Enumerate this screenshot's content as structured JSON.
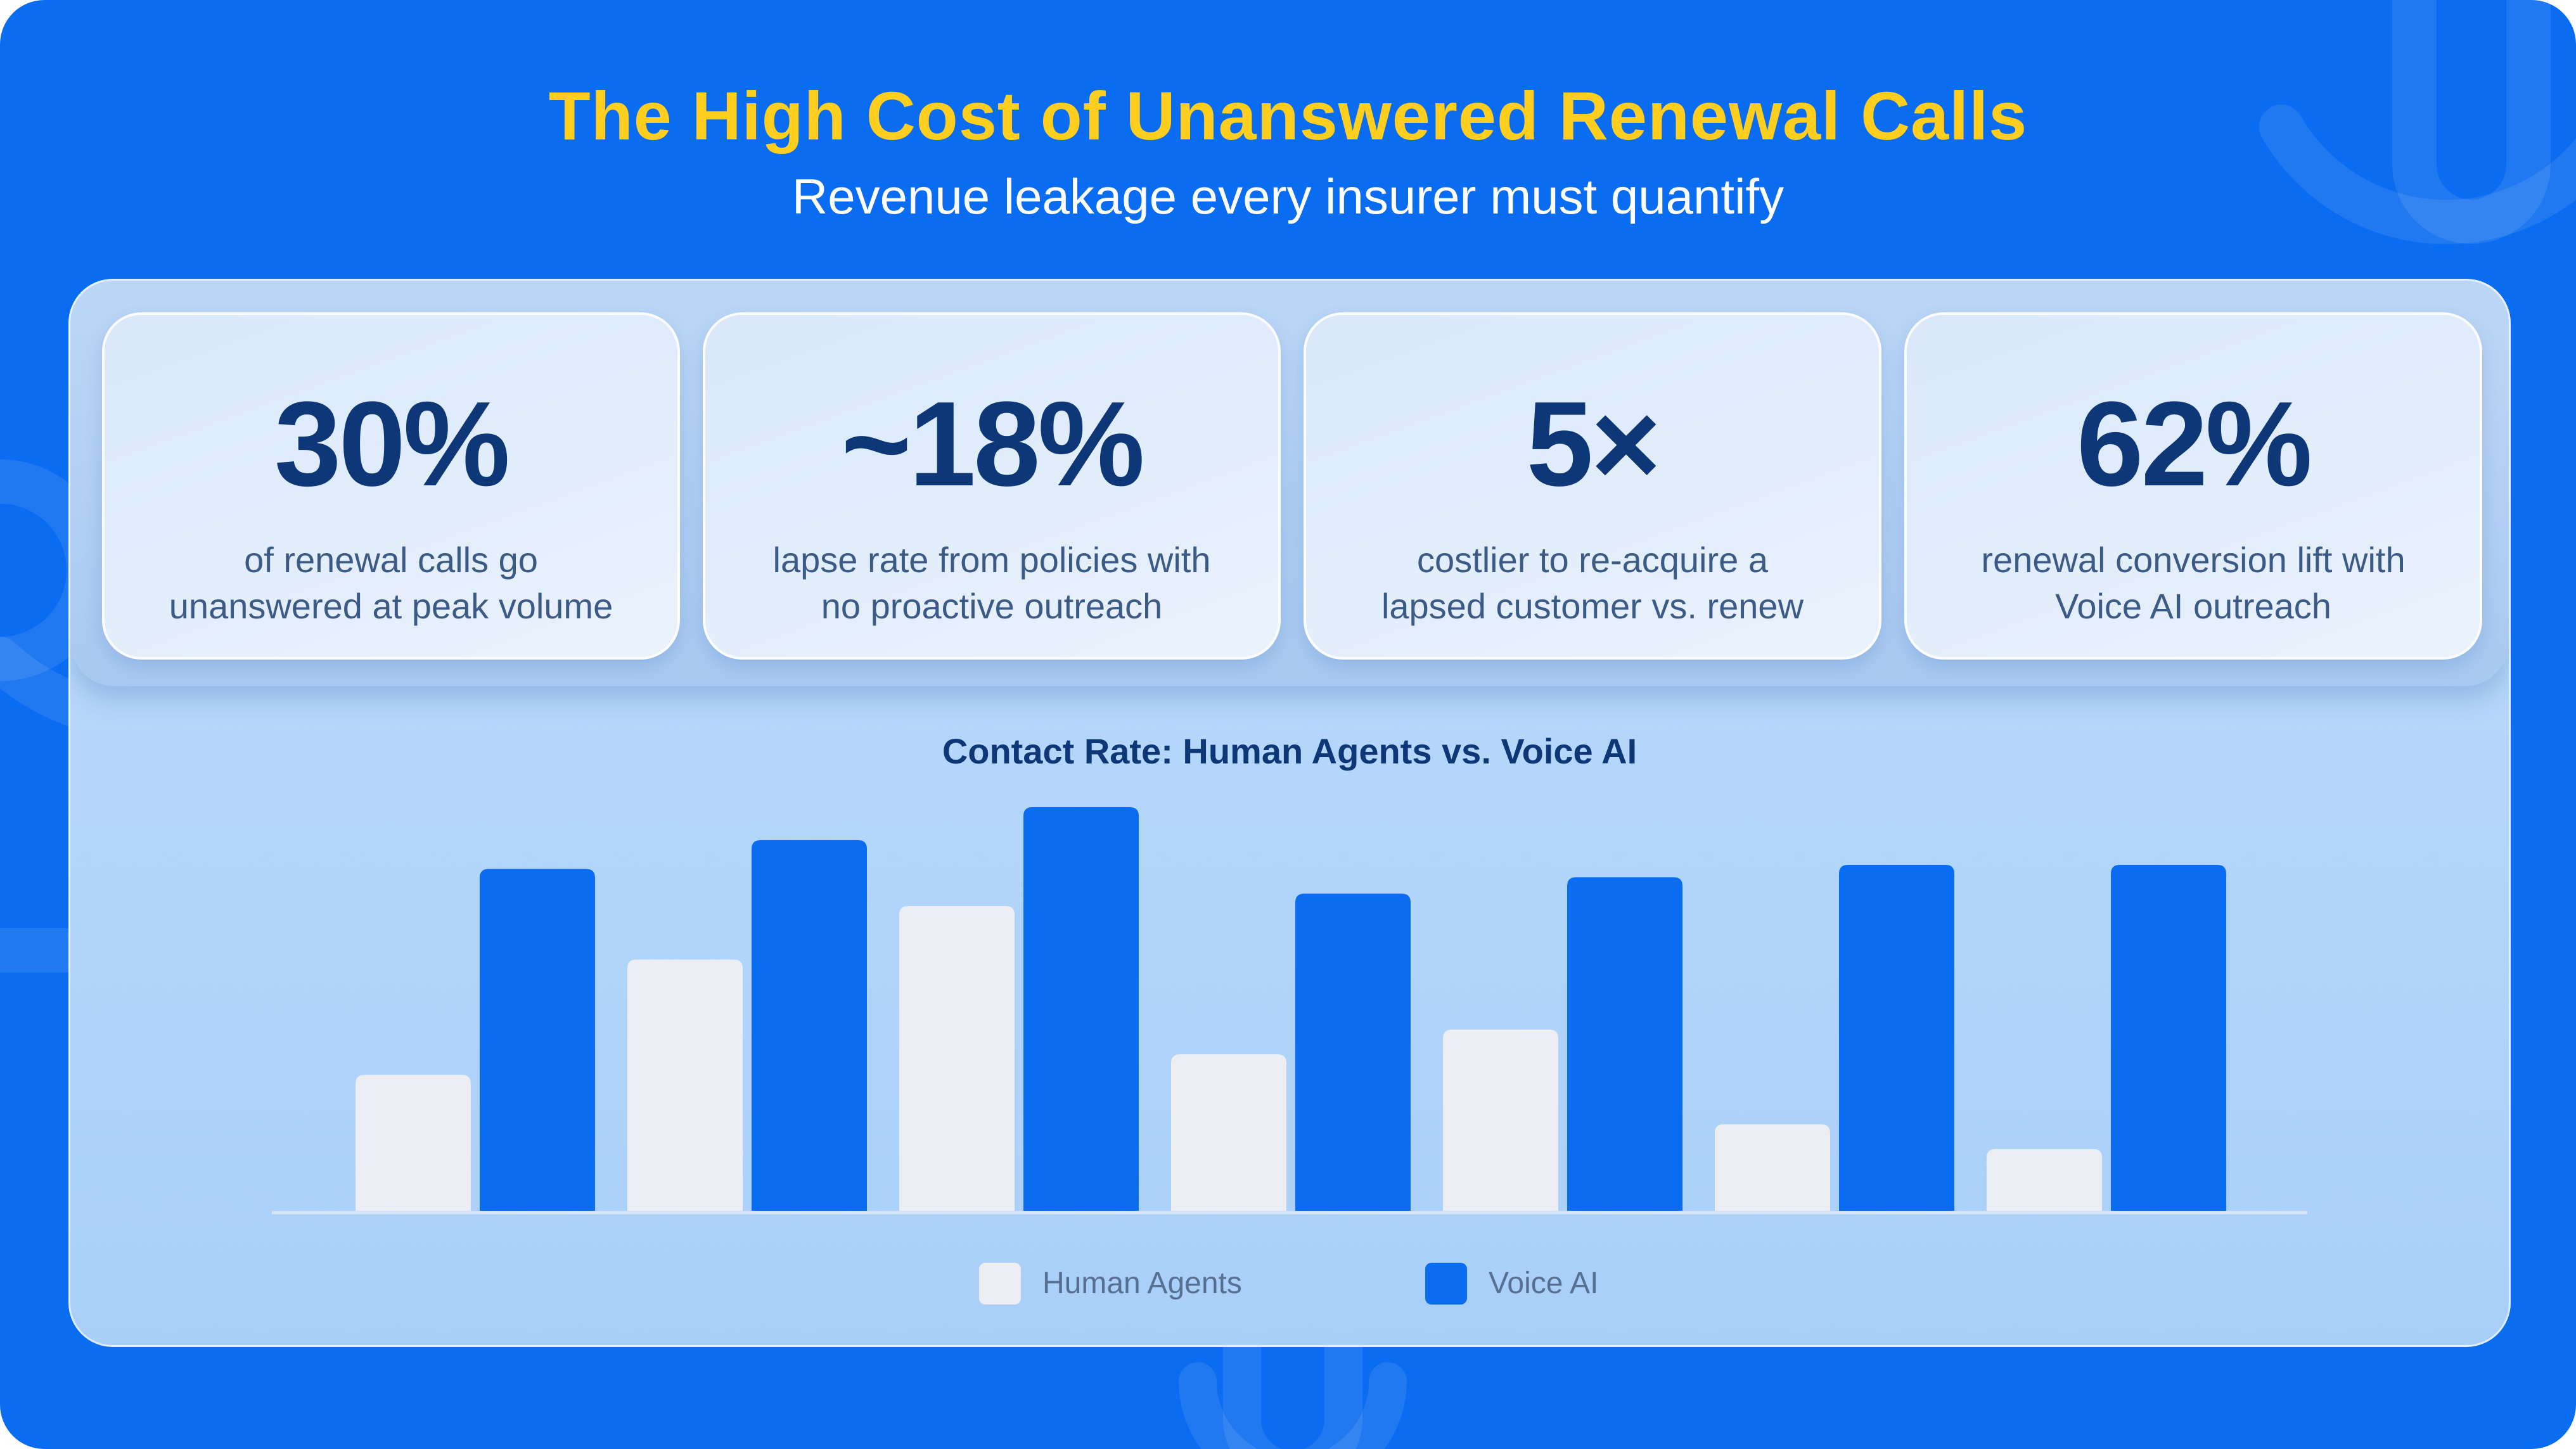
{
  "title": "The High Cost of Unanswered Renewal Calls",
  "subtitle": "Revenue leakage every insurer must quantify",
  "stats": [
    {
      "value": "30%",
      "line1": "of renewal calls go",
      "line2": "unanswered at peak volume"
    },
    {
      "value": "~18%",
      "line1": "lapse rate from policies with",
      "line2": "no proactive outreach"
    },
    {
      "value": "5×",
      "line1": "costlier to re-acquire a",
      "line2": "lapsed customer vs. renew"
    },
    {
      "value": "62%",
      "line1": "renewal conversion lift with",
      "line2": "Voice AI outreach"
    }
  ],
  "colors": {
    "background": "#0a6cf0",
    "title": "#ffce1f",
    "human": "#eceef3",
    "voice_ai": "#0a6cf0",
    "stat_value": "#0d3777"
  },
  "chart_data": {
    "type": "bar",
    "title": "Contact Rate: Human Agents vs. Voice AI",
    "xlabel": "",
    "ylabel": "",
    "ylim": [
      0,
      100
    ],
    "grid": false,
    "legend_position": "bottom",
    "series": [
      {
        "name": "Human Agents",
        "values": [
          33,
          61,
          74,
          38,
          44,
          21,
          15
        ]
      },
      {
        "name": "Voice AI",
        "values": [
          83,
          90,
          98,
          77,
          81,
          84,
          84
        ]
      }
    ]
  }
}
